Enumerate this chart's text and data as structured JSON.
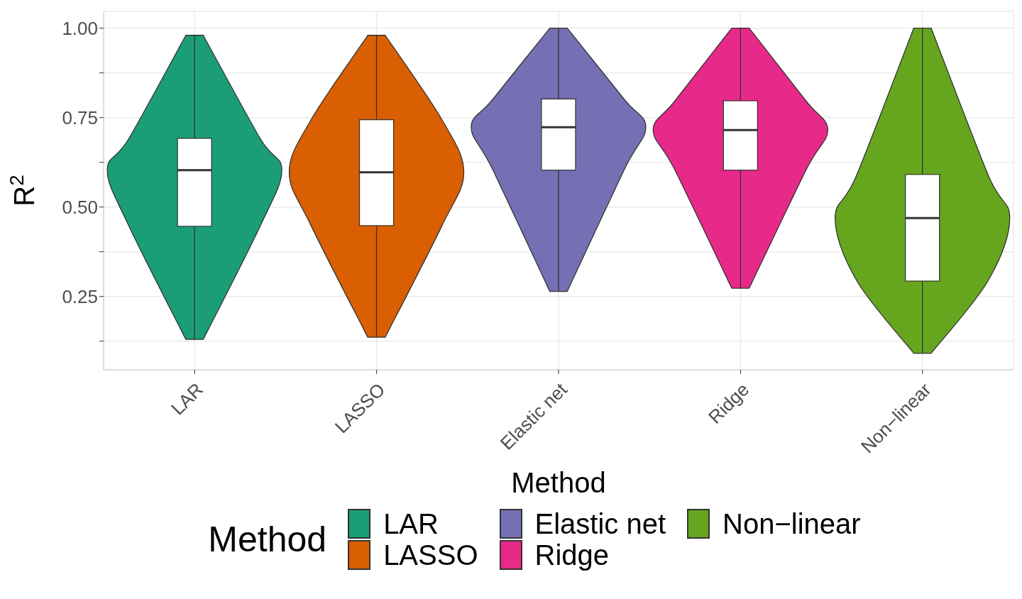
{
  "chart_data": {
    "type": "box",
    "xlabel": "Method",
    "ylabel": "R$^{2}$",
    "legend_title": "Method",
    "categories": [
      "LAR",
      "LASSO",
      "Elastic net",
      "Ridge",
      "Non−linear"
    ],
    "series": [
      {
        "name": "LAR",
        "color": "#1b9e77",
        "boxes": [
          {
            "low": 0.13,
            "q1": 0.446,
            "median": 0.603,
            "q3": 0.692,
            "high": 0.98
          },
          null,
          null,
          null,
          null
        ]
      },
      {
        "name": "LASSO",
        "color": "#d95f02",
        "boxes": [
          null,
          {
            "low": 0.136,
            "q1": 0.448,
            "median": 0.597,
            "q3": 0.744,
            "high": 0.98
          },
          null,
          null,
          null
        ]
      },
      {
        "name": "Elastic net",
        "color": "#7570b3",
        "boxes": [
          null,
          null,
          {
            "low": 0.264,
            "q1": 0.603,
            "median": 0.723,
            "q3": 0.802,
            "high": 1.0
          },
          null,
          null
        ]
      },
      {
        "name": "Ridge",
        "color": "#e7298a",
        "boxes": [
          null,
          null,
          null,
          {
            "low": 0.273,
            "q1": 0.603,
            "median": 0.715,
            "q3": 0.797,
            "high": 1.0
          },
          null
        ]
      },
      {
        "name": "Non−linear",
        "color": "#66a61e",
        "boxes": [
          null,
          null,
          null,
          null,
          {
            "low": 0.091,
            "q1": 0.293,
            "median": 0.469,
            "q3": 0.591,
            "high": 1.0
          }
        ]
      }
    ],
    "ylim": [
      0.045,
      1.047
    ],
    "yticks": [
      {
        "value": 0.125,
        "label": null
      },
      {
        "value": 0.25,
        "label": "0.25"
      },
      {
        "value": 0.375,
        "label": null
      },
      {
        "value": 0.5,
        "label": "0.50"
      },
      {
        "value": 0.625,
        "label": null
      },
      {
        "value": 0.75,
        "label": "0.75"
      },
      {
        "value": 0.875,
        "label": null
      },
      {
        "value": 1.0,
        "label": "1.00"
      }
    ],
    "grid": true,
    "legend": "bottom"
  }
}
